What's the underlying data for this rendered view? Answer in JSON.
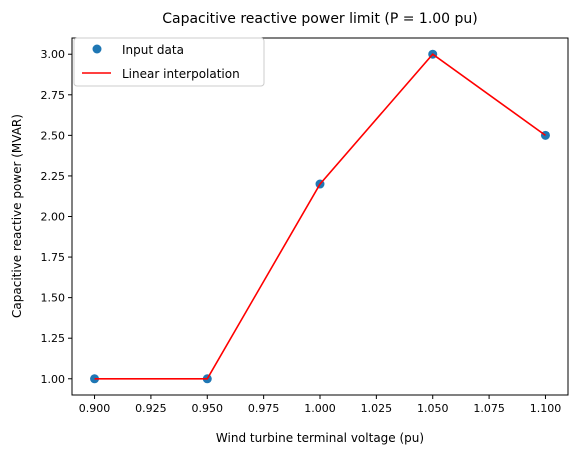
{
  "chart_data": {
    "type": "line",
    "title": "Capacitive reactive power limit (P = 1.00 pu)",
    "xlabel": "Wind turbine terminal voltage (pu)",
    "ylabel": "Capacitive reactive power (MVAR)",
    "xlim": [
      0.89,
      1.11
    ],
    "ylim": [
      0.9,
      3.1
    ],
    "xticks": [
      0.9,
      0.925,
      0.95,
      0.975,
      1.0,
      1.025,
      1.05,
      1.075,
      1.1
    ],
    "xtick_labels": [
      "0.900",
      "0.925",
      "0.950",
      "0.975",
      "1.000",
      "1.025",
      "1.050",
      "1.075",
      "1.100"
    ],
    "yticks": [
      1.0,
      1.25,
      1.5,
      1.75,
      2.0,
      2.25,
      2.5,
      2.75,
      3.0
    ],
    "ytick_labels": [
      "1.00",
      "1.25",
      "1.50",
      "1.75",
      "2.00",
      "2.25",
      "2.50",
      "2.75",
      "3.00"
    ],
    "grid": false,
    "legend": "upper-left",
    "series": [
      {
        "name": "Input data",
        "kind": "scatter",
        "color": "#1f77b4",
        "x": [
          0.9,
          0.95,
          1.0,
          1.05,
          1.1
        ],
        "y": [
          1.0,
          1.0,
          2.2,
          3.0,
          2.5
        ]
      },
      {
        "name": "Linear interpolation",
        "kind": "line",
        "color": "#ff0000",
        "x": [
          0.9,
          0.95,
          1.0,
          1.05,
          1.1
        ],
        "y": [
          1.0,
          1.0,
          2.2,
          3.0,
          2.5
        ]
      }
    ]
  }
}
